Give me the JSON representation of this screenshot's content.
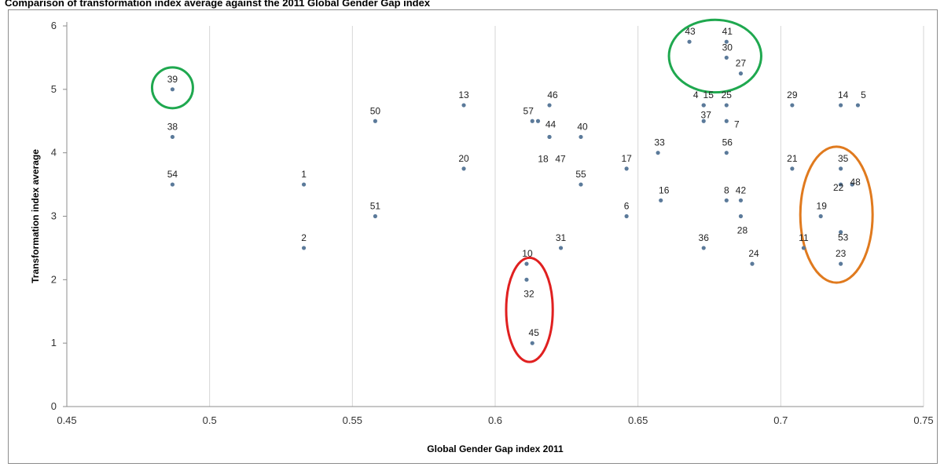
{
  "chart_data": {
    "type": "scatter",
    "title": "Comparison of transformation index average against the 2011 Global Gender Gap index",
    "xlabel": "Global Gender Gap index 2011",
    "ylabel": "Transformation index average",
    "xlim": [
      0.45,
      0.75
    ],
    "ylim": [
      0,
      6
    ],
    "xticks": [
      "0.45",
      "0.5",
      "0.55",
      "0.6",
      "0.65",
      "0.7",
      "0.75"
    ],
    "yticks": [
      "0",
      "1",
      "2",
      "3",
      "4",
      "5",
      "6"
    ],
    "marker_color": "#5b7a9a",
    "points": [
      {
        "label": "39",
        "x": 0.487,
        "y": 5.0
      },
      {
        "label": "38",
        "x": 0.487,
        "y": 4.25
      },
      {
        "label": "54",
        "x": 0.487,
        "y": 3.5
      },
      {
        "label": "1",
        "x": 0.533,
        "y": 3.5
      },
      {
        "label": "2",
        "x": 0.533,
        "y": 2.5
      },
      {
        "label": "50",
        "x": 0.558,
        "y": 4.5
      },
      {
        "label": "51",
        "x": 0.558,
        "y": 3.0
      },
      {
        "label": "13",
        "x": 0.589,
        "y": 4.75
      },
      {
        "label": "20",
        "x": 0.589,
        "y": 3.75
      },
      {
        "label": "10",
        "x": 0.611,
        "y": 2.25
      },
      {
        "label": "32",
        "x": 0.611,
        "y": 2.0
      },
      {
        "label": "45",
        "x": 0.613,
        "y": 1.0
      },
      {
        "label": "57",
        "x": 0.613,
        "y": 4.5
      },
      {
        "label": "44",
        "x": 0.615,
        "y": 4.5
      },
      {
        "label": "46",
        "x": 0.619,
        "y": 4.75
      },
      {
        "label": "18",
        "x": 0.619,
        "y": 4.25
      },
      {
        "label": "47",
        "x": 0.619,
        "y": 4.25
      },
      {
        "label": "31",
        "x": 0.623,
        "y": 2.5
      },
      {
        "label": "40",
        "x": 0.63,
        "y": 4.25
      },
      {
        "label": "55",
        "x": 0.63,
        "y": 3.5
      },
      {
        "label": "17",
        "x": 0.646,
        "y": 3.75
      },
      {
        "label": "6",
        "x": 0.646,
        "y": 3.0
      },
      {
        "label": "33",
        "x": 0.657,
        "y": 4.0
      },
      {
        "label": "16",
        "x": 0.658,
        "y": 3.25
      },
      {
        "label": "43",
        "x": 0.668,
        "y": 5.75
      },
      {
        "label": "4",
        "x": 0.673,
        "y": 4.75
      },
      {
        "label": "15",
        "x": 0.673,
        "y": 4.75
      },
      {
        "label": "37",
        "x": 0.673,
        "y": 4.5
      },
      {
        "label": "36",
        "x": 0.673,
        "y": 2.5
      },
      {
        "label": "41",
        "x": 0.681,
        "y": 5.75
      },
      {
        "label": "30",
        "x": 0.681,
        "y": 5.5
      },
      {
        "label": "25",
        "x": 0.681,
        "y": 4.75
      },
      {
        "label": "7",
        "x": 0.681,
        "y": 4.5
      },
      {
        "label": "56",
        "x": 0.681,
        "y": 4.0
      },
      {
        "label": "8",
        "x": 0.681,
        "y": 3.25
      },
      {
        "label": "27",
        "x": 0.686,
        "y": 5.25
      },
      {
        "label": "42",
        "x": 0.686,
        "y": 3.25
      },
      {
        "label": "28",
        "x": 0.686,
        "y": 3.0
      },
      {
        "label": "24",
        "x": 0.69,
        "y": 2.25
      },
      {
        "label": "29",
        "x": 0.704,
        "y": 4.75
      },
      {
        "label": "21",
        "x": 0.704,
        "y": 3.75
      },
      {
        "label": "11",
        "x": 0.708,
        "y": 2.5
      },
      {
        "label": "19",
        "x": 0.714,
        "y": 3.0
      },
      {
        "label": "14",
        "x": 0.721,
        "y": 4.75
      },
      {
        "label": "35",
        "x": 0.721,
        "y": 3.75
      },
      {
        "label": "22",
        "x": 0.721,
        "y": 3.5
      },
      {
        "label": "53",
        "x": 0.721,
        "y": 2.75
      },
      {
        "label": "23",
        "x": 0.721,
        "y": 2.25
      },
      {
        "label": "5",
        "x": 0.727,
        "y": 4.75
      },
      {
        "label": "48",
        "x": 0.725,
        "y": 3.5
      }
    ],
    "highlight_groups": [
      {
        "color": "#1fa84f",
        "members": [
          "39"
        ]
      },
      {
        "color": "#1fa84f",
        "members": [
          "43",
          "41",
          "30",
          "27"
        ]
      },
      {
        "color": "#e02020",
        "members": [
          "32",
          "45"
        ]
      },
      {
        "color": "#e07a1e",
        "members": [
          "35",
          "22",
          "48",
          "19",
          "53",
          "23"
        ]
      }
    ]
  }
}
